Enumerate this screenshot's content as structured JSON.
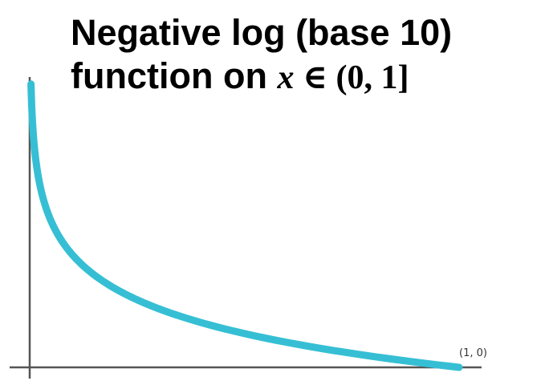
{
  "chart_data": {
    "type": "line",
    "title_line1": "Negative log (base 10)",
    "title_line2_prefix": "function on ",
    "title_math_var": "x",
    "title_math_rest": " ∈ (0, 1]",
    "function": "-log10(x)",
    "xlim": [
      0,
      1
    ],
    "ylim": [
      0,
      2.5
    ],
    "grid": false,
    "xlabel": "",
    "ylabel": "",
    "series": [
      {
        "color": "#36bfd4",
        "x": [
          0.003,
          0.005,
          0.01,
          0.02,
          0.03,
          0.05,
          0.08,
          0.1,
          0.15,
          0.2,
          0.3,
          0.4,
          0.5,
          0.6,
          0.7,
          0.8,
          0.9,
          1.0
        ],
        "y": [
          2.52,
          2.3,
          2.0,
          1.7,
          1.52,
          1.3,
          1.1,
          1.0,
          0.82,
          0.7,
          0.52,
          0.4,
          0.3,
          0.22,
          0.15,
          0.1,
          0.05,
          0.0
        ]
      }
    ],
    "annotations": [
      {
        "text": "(1, 0)",
        "x": 1,
        "y": 0
      }
    ],
    "axis_color": "#555555"
  }
}
